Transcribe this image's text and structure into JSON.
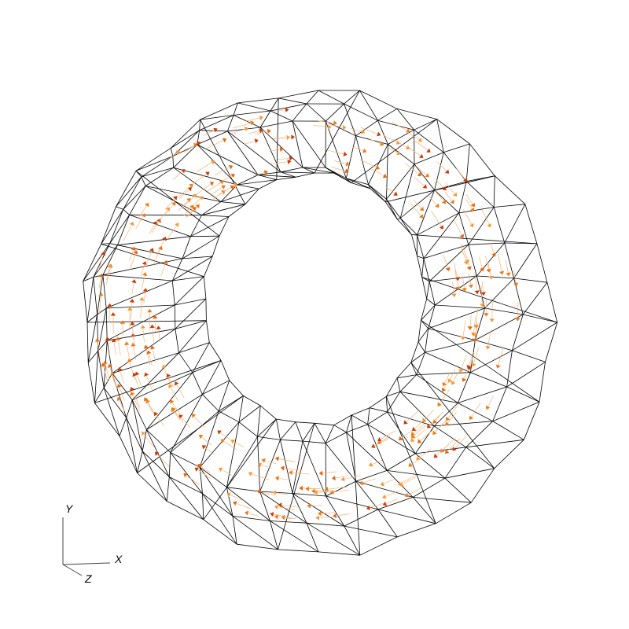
{
  "scene": {
    "background": "#ffffff",
    "mesh_color": "#000000",
    "arrow_colors": [
      "#f07a12",
      "#e8650a",
      "#f59a3c",
      "#c83a08"
    ],
    "arrow_shaft_color": "#f5b477"
  },
  "axes": {
    "y_label": "Y",
    "x_label": "X",
    "z_label": "Z"
  }
}
